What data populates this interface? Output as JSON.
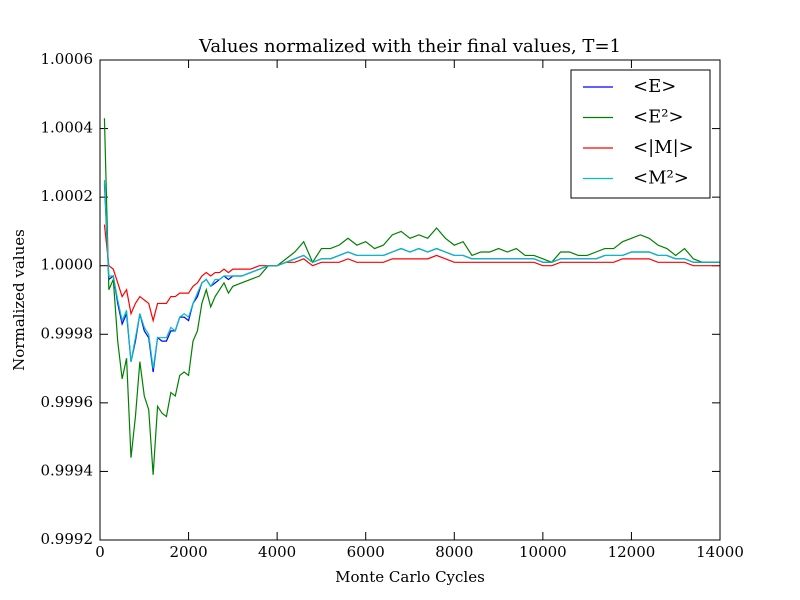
{
  "chart_data": {
    "type": "line",
    "title": "Values normalized with their final values, T=1",
    "xlabel": "Monte Carlo Cycles",
    "ylabel": "Normalized values",
    "xlim": [
      0,
      14000
    ],
    "ylim": [
      0.9992,
      1.0006
    ],
    "xticks": [
      0,
      2000,
      4000,
      6000,
      8000,
      10000,
      12000,
      14000
    ],
    "yticks": [
      0.9992,
      0.9994,
      0.9996,
      0.9998,
      {
        "value": 1,
        "label": "1.0000"
      },
      1.0002,
      1.0004,
      1.0006
    ],
    "grid": false,
    "legend": "upper right",
    "x": [
      100,
      200,
      300,
      400,
      500,
      600,
      700,
      800,
      900,
      1000,
      1100,
      1200,
      1300,
      1400,
      1500,
      1600,
      1700,
      1800,
      1900,
      2000,
      2100,
      2200,
      2300,
      2400,
      2500,
      2600,
      2700,
      2800,
      2900,
      3000,
      3200,
      3400,
      3600,
      3800,
      4000,
      4200,
      4400,
      4600,
      4800,
      5000,
      5200,
      5400,
      5600,
      5800,
      6000,
      6200,
      6400,
      6600,
      6800,
      7000,
      7200,
      7400,
      7600,
      7800,
      8000,
      8200,
      8400,
      8600,
      8800,
      9000,
      9200,
      9400,
      9600,
      9800,
      10000,
      10200,
      10400,
      10600,
      10800,
      11000,
      11200,
      11400,
      11600,
      11800,
      12000,
      12200,
      12400,
      12600,
      12800,
      13000,
      13200,
      13400,
      13600,
      13800,
      14000
    ],
    "series": [
      {
        "name": "<E>",
        "color": "#0000ff",
        "values": [
          1.00024,
          0.99996,
          0.99997,
          0.99989,
          0.99983,
          0.99986,
          0.99972,
          0.99978,
          0.99986,
          0.99981,
          0.99979,
          0.99969,
          0.99979,
          0.99978,
          0.99978,
          0.99981,
          0.99981,
          0.99985,
          0.99985,
          0.99984,
          0.99989,
          0.99991,
          0.99995,
          0.99996,
          0.99994,
          0.99995,
          0.99996,
          0.99997,
          0.99996,
          0.99997,
          0.99997,
          0.99998,
          0.99999,
          1,
          1,
          1.00001,
          1.00002,
          1.00003,
          1.00001,
          1.00002,
          1.00002,
          1.00003,
          1.00004,
          1.00003,
          1.00003,
          1.00003,
          1.00003,
          1.00004,
          1.00005,
          1.00004,
          1.00005,
          1.00004,
          1.00005,
          1.00004,
          1.00003,
          1.00003,
          1.00002,
          1.00002,
          1.00002,
          1.00002,
          1.00002,
          1.00002,
          1.00002,
          1.00002,
          1.00001,
          1.00001,
          1.00002,
          1.00002,
          1.00002,
          1.00002,
          1.00002,
          1.00003,
          1.00003,
          1.00003,
          1.00004,
          1.00004,
          1.00004,
          1.00003,
          1.00003,
          1.00002,
          1.00002,
          1.00001,
          1.00001,
          1.00001,
          1.00001
        ]
      },
      {
        "name": "<E²>",
        "color": "#008000",
        "values": [
          1.00043,
          0.99993,
          0.99996,
          0.99978,
          0.99967,
          0.99973,
          0.99944,
          0.99956,
          0.99972,
          0.99962,
          0.99958,
          0.99939,
          0.99959,
          0.99957,
          0.99956,
          0.99963,
          0.99962,
          0.99968,
          0.99969,
          0.99968,
          0.99978,
          0.99981,
          0.99989,
          0.99993,
          0.99988,
          0.99991,
          0.99993,
          0.99995,
          0.99992,
          0.99994,
          0.99995,
          0.99996,
          0.99997,
          1,
          1,
          1.00002,
          1.00004,
          1.00007,
          1.00001,
          1.00005,
          1.00005,
          1.00006,
          1.00008,
          1.00006,
          1.00007,
          1.00005,
          1.00006,
          1.00009,
          1.0001,
          1.00008,
          1.00009,
          1.00008,
          1.00011,
          1.00008,
          1.00006,
          1.00007,
          1.00003,
          1.00004,
          1.00004,
          1.00005,
          1.00004,
          1.00005,
          1.00003,
          1.00003,
          1.00002,
          1.00001,
          1.00004,
          1.00004,
          1.00003,
          1.00003,
          1.00004,
          1.00005,
          1.00005,
          1.00007,
          1.00008,
          1.00009,
          1.00008,
          1.00006,
          1.00005,
          1.00003,
          1.00005,
          1.00002,
          1.00001,
          1.00001,
          1.00001
        ]
      },
      {
        "name": "<|M|>",
        "color": "#ff0000",
        "values": [
          1.00012,
          1,
          0.99999,
          0.99995,
          0.99991,
          0.99993,
          0.99986,
          0.99989,
          0.99991,
          0.9999,
          0.99989,
          0.99984,
          0.99989,
          0.99989,
          0.99989,
          0.99991,
          0.99991,
          0.99992,
          0.99992,
          0.99992,
          0.99994,
          0.99995,
          0.99997,
          0.99998,
          0.99997,
          0.99998,
          0.99998,
          0.99999,
          0.99998,
          0.99999,
          0.99999,
          0.99999,
          1,
          1,
          1,
          1.00001,
          1.00001,
          1.00002,
          1,
          1.00001,
          1.00001,
          1.00001,
          1.00002,
          1.00001,
          1.00001,
          1.00001,
          1.00001,
          1.00002,
          1.00002,
          1.00002,
          1.00002,
          1.00002,
          1.00003,
          1.00002,
          1.00001,
          1.00001,
          1.00001,
          1.00001,
          1.00001,
          1.00001,
          1.00001,
          1.00001,
          1.00001,
          1.00001,
          1,
          1,
          1.00001,
          1.00001,
          1.00001,
          1.00001,
          1.00001,
          1.00001,
          1.00001,
          1.00002,
          1.00002,
          1.00002,
          1.00002,
          1.00001,
          1.00001,
          1.00001,
          1.00001,
          1,
          1,
          1,
          1
        ]
      },
      {
        "name": "<M²>",
        "color": "#00bfbf",
        "values": [
          1.00025,
          0.99997,
          0.99997,
          0.9999,
          0.99984,
          0.99987,
          0.99972,
          0.99979,
          0.99986,
          0.99982,
          0.9998,
          0.9997,
          0.99979,
          0.99979,
          0.99979,
          0.99982,
          0.99981,
          0.99985,
          0.99986,
          0.99985,
          0.99989,
          0.99992,
          0.99995,
          0.99996,
          0.99994,
          0.99996,
          0.99996,
          0.99997,
          0.99997,
          0.99997,
          0.99997,
          0.99998,
          0.99999,
          1,
          1,
          1.00001,
          1.00002,
          1.00003,
          1.00001,
          1.00002,
          1.00002,
          1.00003,
          1.00004,
          1.00003,
          1.00003,
          1.00003,
          1.00003,
          1.00004,
          1.00005,
          1.00004,
          1.00005,
          1.00004,
          1.00005,
          1.00004,
          1.00003,
          1.00003,
          1.00002,
          1.00002,
          1.00002,
          1.00002,
          1.00002,
          1.00002,
          1.00002,
          1.00002,
          1.00001,
          1.00001,
          1.00002,
          1.00002,
          1.00002,
          1.00002,
          1.00002,
          1.00003,
          1.00003,
          1.00003,
          1.00004,
          1.00004,
          1.00004,
          1.00003,
          1.00003,
          1.00002,
          1.00002,
          1.00001,
          1.00001,
          1.00001,
          1.00001
        ]
      }
    ]
  }
}
